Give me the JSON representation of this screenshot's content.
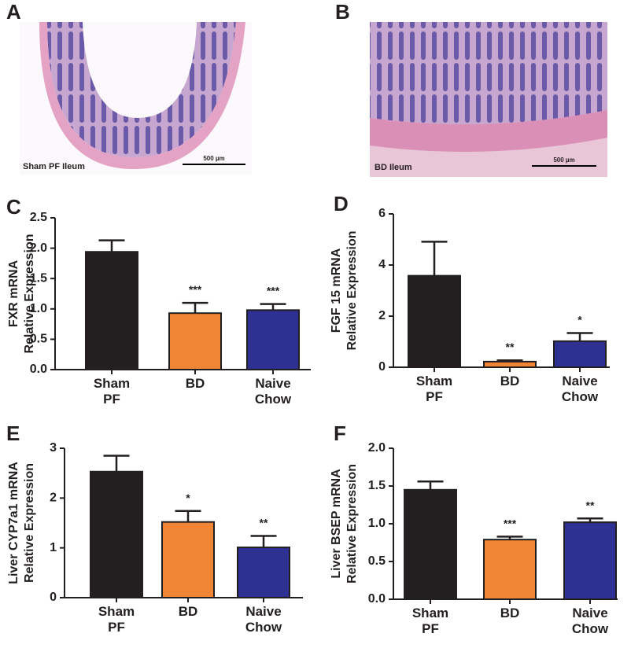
{
  "images": [
    {
      "label": "A",
      "caption": "Sham PF Ileum",
      "scale_bar": "500 µm"
    },
    {
      "label": "B",
      "caption": "BD Ileum",
      "scale_bar": "500 µm"
    }
  ],
  "chart_data": [
    {
      "type": "bar",
      "label": "C",
      "ylabel": [
        "FXR mRNA",
        "Relative Expression"
      ],
      "categories": [
        "Sham PF",
        "BD",
        "Naive Chow"
      ],
      "values": [
        1.94,
        0.93,
        0.98
      ],
      "errors": [
        0.19,
        0.17,
        0.1
      ],
      "annotations": [
        null,
        "***",
        "***"
      ],
      "colors": [
        "#231f20",
        "#f08536",
        "#2e3192"
      ],
      "ylim": [
        0,
        2.5
      ],
      "yticks": [
        {
          "value": 0,
          "label": "0.0"
        },
        0.5,
        {
          "value": 1,
          "label": "1.0"
        },
        1.5,
        {
          "value": 2,
          "label": "2.0"
        },
        2.5
      ]
    },
    {
      "type": "bar",
      "label": "D",
      "ylabel": [
        "FGF 15 mRNA",
        "Relative Expression"
      ],
      "categories": [
        "Sham PF",
        "BD",
        "Naive Chow"
      ],
      "values": [
        3.58,
        0.22,
        1.02
      ],
      "errors": [
        1.33,
        0.05,
        0.32
      ],
      "annotations": [
        null,
        "**",
        "*"
      ],
      "colors": [
        "#231f20",
        "#f08536",
        "#2e3192"
      ],
      "ylim": [
        0,
        6
      ],
      "yticks": [
        0,
        2,
        4,
        6
      ]
    },
    {
      "type": "bar",
      "label": "E",
      "ylabel": [
        "Liver CYP7a1 mRNA",
        "Relative Expression"
      ],
      "categories": [
        "Sham PF",
        "BD",
        "Naive Chow"
      ],
      "values": [
        2.53,
        1.52,
        1.01
      ],
      "errors": [
        0.32,
        0.22,
        0.23
      ],
      "annotations": [
        null,
        "*",
        "**"
      ],
      "colors": [
        "#231f20",
        "#f08536",
        "#2e3192"
      ],
      "ylim": [
        0,
        3
      ],
      "yticks": [
        0,
        1,
        2,
        3
      ]
    },
    {
      "type": "bar",
      "label": "F",
      "ylabel": [
        "Liver BSEP mRNA",
        "Relative Expression"
      ],
      "categories": [
        "Sham PF",
        "BD",
        "Naive Chow"
      ],
      "values": [
        1.45,
        0.79,
        1.02
      ],
      "errors": [
        0.11,
        0.04,
        0.05
      ],
      "annotations": [
        null,
        "***",
        "**"
      ],
      "colors": [
        "#231f20",
        "#f08536",
        "#2e3192"
      ],
      "ylim": [
        0,
        2
      ],
      "yticks": [
        {
          "value": 0,
          "label": "0.0"
        },
        0.5,
        {
          "value": 1,
          "label": "1.0"
        },
        1.5,
        {
          "value": 2,
          "label": "2.0"
        }
      ]
    }
  ]
}
